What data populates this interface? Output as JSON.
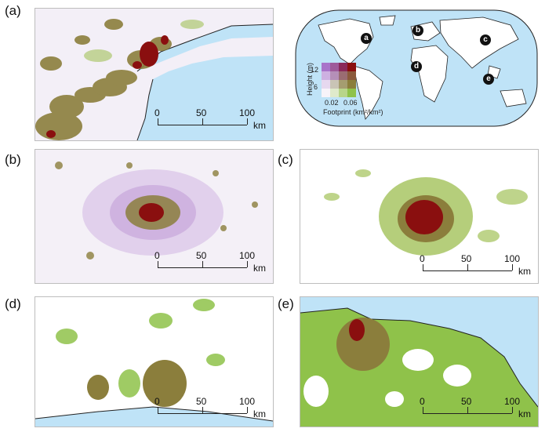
{
  "panels": {
    "a": {
      "label": "(a)"
    },
    "b": {
      "label": "(b)"
    },
    "c": {
      "label": "(c)"
    },
    "d": {
      "label": "(d)"
    },
    "e": {
      "label": "(e)"
    }
  },
  "scale_bar": {
    "ticks": [
      "0",
      "50",
      "100"
    ],
    "unit": "km"
  },
  "world_map": {
    "markers": [
      "a",
      "b",
      "c",
      "d",
      "e"
    ],
    "legend": {
      "y_title": "Height (m)",
      "y_ticks": [
        "12",
        "6"
      ],
      "x_ticks": [
        "0.02",
        "0.06"
      ],
      "x_title": "Footprint (km²/km²)"
    }
  },
  "colors": {
    "ocean": "#bfe3f7",
    "urban_low": "#8b7e3c",
    "urban_high": "#8a0f0f",
    "green": "#8fc24a",
    "purple": "#c4a6dd",
    "land": "#ffffff"
  }
}
